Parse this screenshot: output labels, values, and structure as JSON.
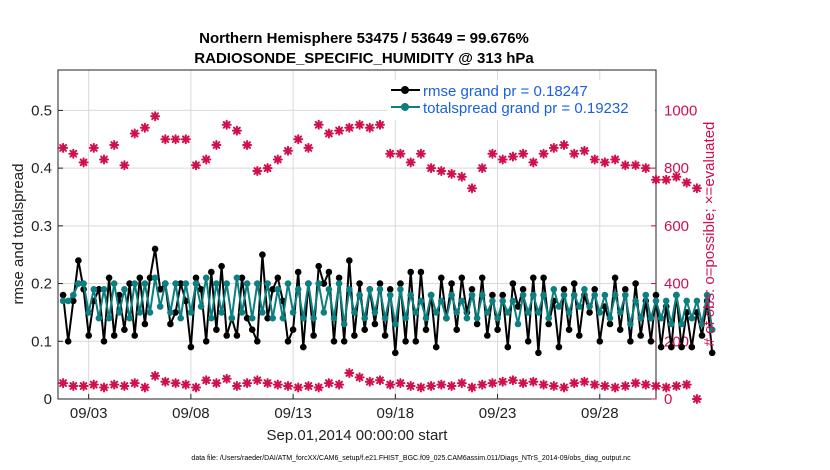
{
  "chart_data": {
    "type": "line",
    "title": "Northern Hemisphere 53475 / 53649 = 99.676%",
    "subtitle": "RADIOSONDE_SPECIFIC_HUMIDITY @ 313 hPa",
    "xlabel": "Sep.01,2014 00:00:00 start",
    "ylabel": "rmse and totalspread",
    "ylabel_right": "# of obs: o=possible; ×=evaluated",
    "footer": "data file: /Users/raeder/DAI/ATM_forcXX/CAM6_setup/f.e21.FHIST_BGC.f09_025.CAM6assim.011/Diags_NTrS_2014-09/obs_diag_output.nc",
    "x_range": [
      1.5,
      30.75
    ],
    "ylim": [
      0,
      0.57
    ],
    "ylim_right": [
      0,
      1140
    ],
    "x_ticks": [
      3,
      8,
      13,
      18,
      23,
      28
    ],
    "x_tick_labels": [
      "09/03",
      "09/08",
      "09/13",
      "09/18",
      "09/23",
      "09/28"
    ],
    "y_ticks": [
      0,
      0.1,
      0.2,
      0.3,
      0.4,
      0.5
    ],
    "y_tick_labels": [
      "0",
      "0.1",
      "0.2",
      "0.3",
      "0.4",
      "0.5"
    ],
    "y_ticks_right": [
      0,
      200,
      400,
      600,
      800,
      1000
    ],
    "y_tick_labels_right": [
      "0",
      "200",
      "400",
      "600",
      "800",
      "1000"
    ],
    "grid": true,
    "legend": "top-right",
    "colors": {
      "rmse": "#000000",
      "spread": "#0c7f80",
      "obs": "#d0104c",
      "legend_text": "#1a5fe0"
    },
    "series": [
      {
        "name": "rmse grand pr = 0.18247",
        "x0": 1.75,
        "dx": 0.25,
        "values": [
          0.18,
          0.1,
          0.17,
          0.24,
          0.19,
          0.11,
          0.17,
          0.19,
          0.1,
          0.21,
          0.11,
          0.18,
          0.12,
          0.2,
          0.11,
          0.21,
          0.13,
          0.21,
          0.26,
          0.19,
          0.2,
          0.13,
          0.15,
          0.2,
          0.17,
          0.09,
          0.21,
          0.19,
          0.1,
          0.22,
          0.12,
          0.23,
          0.11,
          0.14,
          0.11,
          0.21,
          0.14,
          0.12,
          0.1,
          0.25,
          0.14,
          0.19,
          0.21,
          0.17,
          0.1,
          0.12,
          0.22,
          0.09,
          0.2,
          0.11,
          0.23,
          0.2,
          0.22,
          0.1,
          0.21,
          0.1,
          0.24,
          0.11,
          0.2,
          0.12,
          0.19,
          0.13,
          0.2,
          0.11,
          0.19,
          0.08,
          0.2,
          0.1,
          0.22,
          0.1,
          0.22,
          0.12,
          0.18,
          0.09,
          0.21,
          0.14,
          0.2,
          0.12,
          0.21,
          0.15,
          0.19,
          0.13,
          0.21,
          0.11,
          0.18,
          0.12,
          0.18,
          0.09,
          0.2,
          0.16,
          0.19,
          0.1,
          0.21,
          0.08,
          0.21,
          0.13,
          0.17,
          0.09,
          0.19,
          0.12,
          0.2,
          0.11,
          0.18,
          0.15,
          0.19,
          0.1,
          0.16,
          0.13,
          0.21,
          0.12,
          0.19,
          0.1,
          0.2,
          0.11,
          0.17,
          0.1,
          0.18,
          0.09,
          0.16,
          0.09,
          0.18,
          0.09,
          0.15,
          0.09,
          0.15,
          0.11,
          0.17,
          0.08
        ],
        "marker": "filled-circle"
      },
      {
        "name": "totalspread grand pr = 0.19232",
        "x0": 1.75,
        "dx": 0.25,
        "values": [
          0.17,
          0.17,
          0.18,
          0.2,
          0.2,
          0.15,
          0.19,
          0.14,
          0.19,
          0.14,
          0.2,
          0.15,
          0.19,
          0.14,
          0.2,
          0.15,
          0.2,
          0.15,
          0.21,
          0.16,
          0.2,
          0.15,
          0.2,
          0.14,
          0.2,
          0.15,
          0.2,
          0.16,
          0.21,
          0.14,
          0.2,
          0.15,
          0.2,
          0.14,
          0.21,
          0.15,
          0.2,
          0.14,
          0.2,
          0.15,
          0.2,
          0.14,
          0.19,
          0.14,
          0.2,
          0.15,
          0.19,
          0.14,
          0.2,
          0.14,
          0.2,
          0.15,
          0.19,
          0.14,
          0.2,
          0.13,
          0.19,
          0.15,
          0.18,
          0.14,
          0.19,
          0.15,
          0.19,
          0.14,
          0.18,
          0.13,
          0.19,
          0.14,
          0.18,
          0.15,
          0.17,
          0.14,
          0.18,
          0.15,
          0.17,
          0.14,
          0.18,
          0.15,
          0.17,
          0.14,
          0.18,
          0.14,
          0.18,
          0.15,
          0.17,
          0.14,
          0.17,
          0.15,
          0.17,
          0.13,
          0.18,
          0.15,
          0.18,
          0.15,
          0.18,
          0.14,
          0.19,
          0.16,
          0.18,
          0.15,
          0.18,
          0.16,
          0.19,
          0.16,
          0.18,
          0.15,
          0.18,
          0.14,
          0.18,
          0.15,
          0.18,
          0.13,
          0.17,
          0.14,
          0.18,
          0.14,
          0.17,
          0.14,
          0.17,
          0.13,
          0.18,
          0.13,
          0.17,
          0.14,
          0.17,
          0.13,
          0.18,
          0.12
        ],
        "marker": "filled-circle"
      },
      {
        "name": "# of obs possible / evaluated",
        "axis": "right",
        "x0": 1.75,
        "dx": 0.5,
        "values": [
          870,
          850,
          820,
          870,
          830,
          880,
          810,
          920,
          940,
          980,
          900,
          900,
          900,
          810,
          830,
          880,
          950,
          930,
          880,
          790,
          800,
          830,
          860,
          900,
          870,
          950,
          920,
          930,
          940,
          950,
          940,
          950,
          850,
          850,
          820,
          850,
          800,
          790,
          780,
          770,
          730,
          800,
          850,
          830,
          840,
          850,
          820,
          850,
          870,
          880,
          850,
          860,
          830,
          820,
          830,
          810,
          810,
          800,
          760,
          760,
          770,
          750,
          730
        ],
        "low_values": [
          55,
          45,
          45,
          50,
          40,
          50,
          45,
          55,
          40,
          80,
          60,
          55,
          50,
          40,
          65,
          55,
          70,
          45,
          55,
          65,
          55,
          50,
          45,
          40,
          45,
          40,
          55,
          50,
          90,
          75,
          60,
          65,
          50,
          55,
          45,
          40,
          45,
          50,
          45,
          55,
          40,
          50,
          55,
          60,
          65,
          55,
          60,
          50,
          45,
          40,
          55,
          60,
          50,
          45,
          40,
          45,
          55,
          50,
          45,
          40,
          45,
          50,
          0
        ],
        "marker": "star"
      }
    ]
  }
}
